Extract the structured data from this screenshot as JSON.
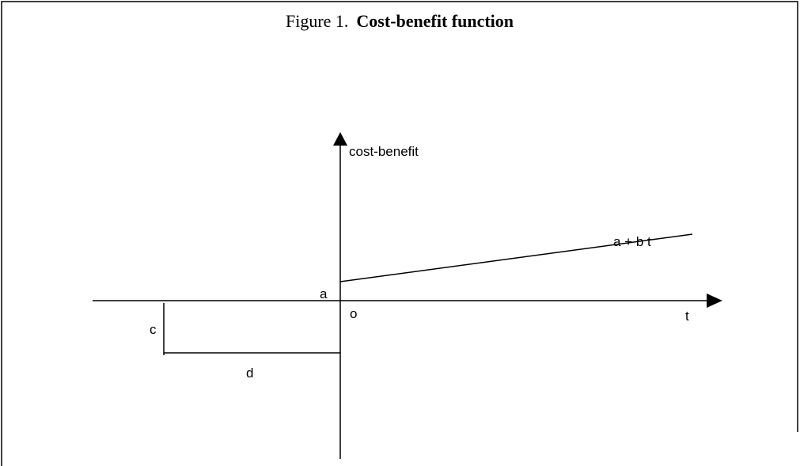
{
  "title": {
    "label": "Figure 1.",
    "name": "Cost-benefit function"
  },
  "axes": {
    "y_label": "cost-benefit",
    "x_label": "t",
    "origin": "o"
  },
  "labels": {
    "line": "a + b t",
    "intercept": "a",
    "c": "c",
    "d": "d"
  }
}
